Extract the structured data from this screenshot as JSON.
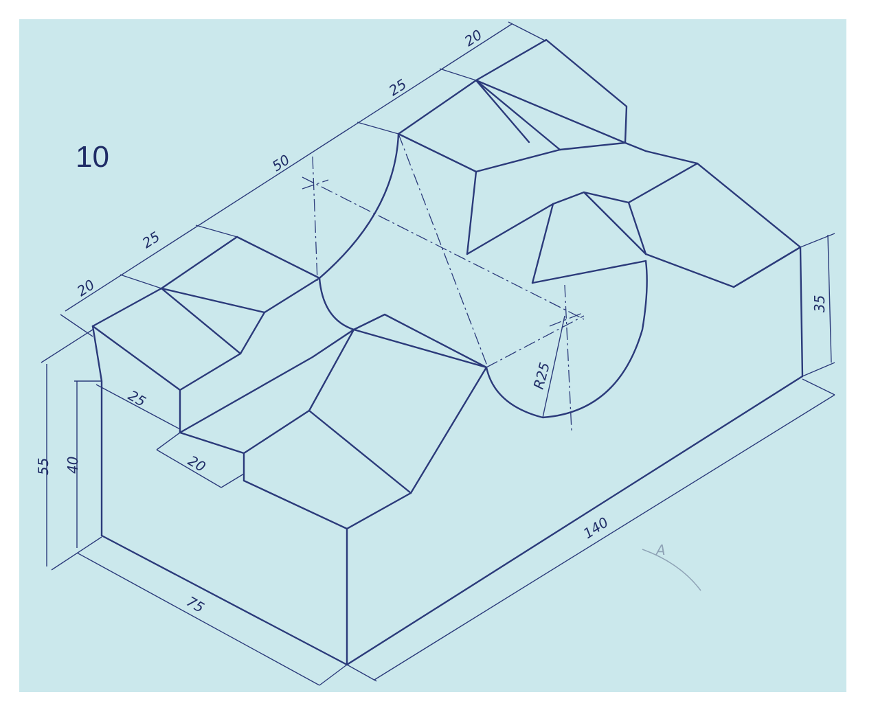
{
  "exercise_number": "10",
  "dimensions": {
    "top_20_left": "20",
    "top_25_left": "25",
    "top_50": "50",
    "top_25_right": "25",
    "top_20_right": "20",
    "side_25": "25",
    "side_20": "20",
    "height_55": "55",
    "height_40": "40",
    "height_35": "35",
    "depth_75": "75",
    "length_140": "140",
    "radius": "R25"
  },
  "margin_mark": "A",
  "colors": {
    "paper": "#cbe8ec",
    "ink": "#2b3a7a"
  }
}
